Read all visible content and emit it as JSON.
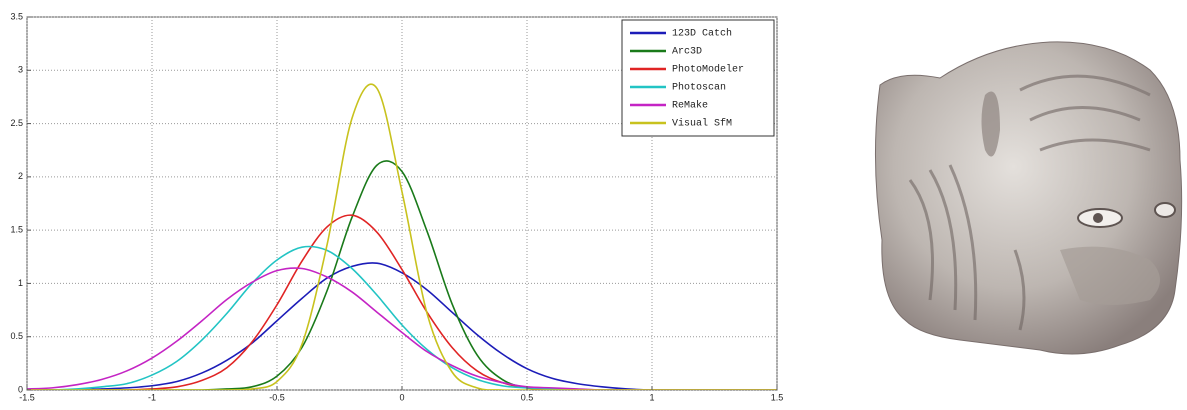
{
  "chart_data": {
    "type": "line",
    "x": [
      -1.5,
      -1.4,
      -1.3,
      -1.2,
      -1.1,
      -1.0,
      -0.9,
      -0.8,
      -0.7,
      -0.6,
      -0.5,
      -0.4,
      -0.3,
      -0.2,
      -0.1,
      0,
      0.1,
      0.2,
      0.3,
      0.4,
      0.5,
      0.6,
      0.7,
      0.8,
      0.9,
      1.0,
      1.1,
      1.2,
      1.3,
      1.4,
      1.5
    ],
    "series": [
      {
        "name": "123D Catch",
        "color": "#1c1cb8",
        "values": [
          0,
          0,
          0,
          0.01,
          0.02,
          0.04,
          0.08,
          0.16,
          0.28,
          0.44,
          0.65,
          0.86,
          1.05,
          1.16,
          1.19,
          1.1,
          0.94,
          0.73,
          0.52,
          0.34,
          0.2,
          0.11,
          0.06,
          0.03,
          0.01,
          0,
          0,
          0,
          0,
          0,
          0
        ]
      },
      {
        "name": "Arc3D",
        "color": "#1a7a1a",
        "values": [
          0,
          0,
          0,
          0,
          0,
          0,
          0,
          0,
          0.01,
          0.03,
          0.13,
          0.4,
          0.93,
          1.62,
          2.11,
          2.05,
          1.49,
          0.81,
          0.33,
          0.1,
          0.02,
          0,
          0,
          0,
          0,
          0,
          0,
          0,
          0,
          0,
          0
        ]
      },
      {
        "name": "PhotoModeler",
        "color": "#e02424",
        "values": [
          0,
          0,
          0,
          0,
          0,
          0.01,
          0.03,
          0.09,
          0.21,
          0.45,
          0.8,
          1.21,
          1.53,
          1.64,
          1.48,
          1.13,
          0.73,
          0.4,
          0.18,
          0.07,
          0.02,
          0.01,
          0,
          0,
          0,
          0,
          0,
          0,
          0,
          0,
          0
        ]
      },
      {
        "name": "Photoscan",
        "color": "#22c4c4",
        "values": [
          0,
          0,
          0.01,
          0.03,
          0.06,
          0.14,
          0.27,
          0.47,
          0.72,
          1.0,
          1.22,
          1.34,
          1.31,
          1.14,
          0.89,
          0.61,
          0.38,
          0.21,
          0.1,
          0.04,
          0.02,
          0.01,
          0,
          0,
          0,
          0,
          0,
          0,
          0,
          0,
          0
        ]
      },
      {
        "name": "ReMake",
        "color": "#c424c4",
        "values": [
          0.01,
          0.02,
          0.05,
          0.1,
          0.18,
          0.3,
          0.46,
          0.65,
          0.85,
          1.01,
          1.12,
          1.14,
          1.06,
          0.92,
          0.73,
          0.54,
          0.36,
          0.23,
          0.13,
          0.07,
          0.03,
          0.02,
          0.01,
          0,
          0,
          0,
          0,
          0,
          0,
          0,
          0
        ]
      },
      {
        "name": "Visual SfM",
        "color": "#c8c21e",
        "values": [
          0,
          0,
          0,
          0,
          0,
          0,
          0,
          0,
          0,
          0.01,
          0.08,
          0.43,
          1.36,
          2.55,
          2.83,
          1.86,
          0.72,
          0.17,
          0.02,
          0,
          0,
          0,
          0,
          0,
          0,
          0,
          0,
          0,
          0,
          0,
          0
        ]
      }
    ],
    "xlim": [
      -1.5,
      1.5
    ],
    "xticks": [
      -1.5,
      -1,
      -0.5,
      0,
      0.5,
      1,
      1.5
    ],
    "ylim": [
      0,
      3.5
    ],
    "yticks": [
      0,
      0.5,
      1,
      1.5,
      2,
      2.5,
      3,
      3.5
    ],
    "grid": true,
    "legend": "upper right"
  }
}
